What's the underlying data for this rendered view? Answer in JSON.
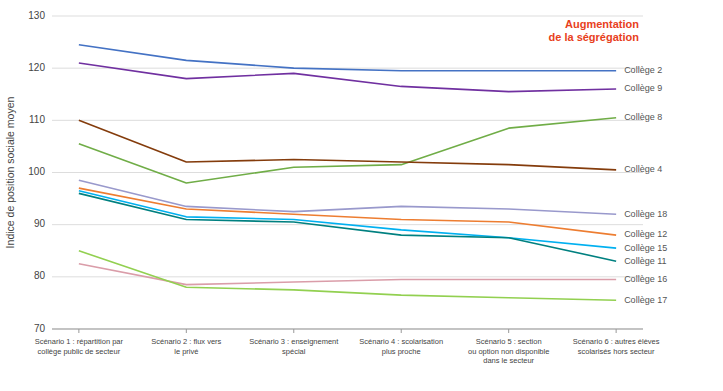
{
  "chart_data": {
    "type": "line",
    "ylabel": "Indice de position sociale moyen",
    "categories": [
      "Scénario 1 : répartition par\ncollège public de secteur",
      "Scénario 2 : flux vers\nle privé",
      "Scénario 3 : enseignement\nspécial",
      "Scénario 4 : scolarisation\nplus proche",
      "Scénario 5 : section\nou option non disponible\ndans le secteur",
      "Scénario 6 : autres élèves\nscolarisés hors secteur"
    ],
    "annotations": [
      {
        "text": "Augmentation\nde la ségrégation",
        "color": "#e8401c"
      }
    ],
    "series": [
      {
        "name": "Collège 2",
        "color": "#4472c4",
        "values": [
          124.5,
          121.5,
          120.0,
          119.5,
          119.5,
          119.5
        ]
      },
      {
        "name": "Collège 9",
        "color": "#7030a0",
        "values": [
          121.0,
          118.0,
          119.0,
          116.5,
          115.5,
          116.0
        ]
      },
      {
        "name": "Collège 8",
        "color": "#70ad47",
        "values": [
          105.5,
          98.0,
          101.0,
          101.5,
          108.5,
          110.5
        ]
      },
      {
        "name": "Collège 4",
        "color": "#843c0c",
        "values": [
          110.0,
          102.0,
          102.5,
          102.0,
          101.5,
          100.5
        ]
      },
      {
        "name": "Collège 18",
        "color": "#9999cc",
        "values": [
          98.5,
          93.5,
          92.5,
          93.5,
          93.0,
          92.0
        ]
      },
      {
        "name": "Collège 12",
        "color": "#ed7d31",
        "values": [
          97.0,
          93.0,
          92.0,
          91.0,
          90.5,
          88.0
        ]
      },
      {
        "name": "Collège 15",
        "color": "#00b0f0",
        "values": [
          96.5,
          91.5,
          91.0,
          89.0,
          87.5,
          85.5
        ]
      },
      {
        "name": "Collège 11",
        "color": "#008080",
        "values": [
          96.0,
          91.0,
          90.5,
          88.0,
          87.5,
          83.0
        ]
      },
      {
        "name": "Collège 16",
        "color": "#da9da9",
        "values": [
          82.5,
          78.5,
          79.0,
          79.5,
          79.5,
          79.5
        ]
      },
      {
        "name": "Collège 17",
        "color": "#92d050",
        "values": [
          85.0,
          78.0,
          77.5,
          76.5,
          76.0,
          75.5
        ]
      }
    ],
    "ylim": [
      70,
      130
    ],
    "yticks": [
      70,
      80,
      90,
      100,
      110,
      120,
      130
    ],
    "grid": true
  }
}
